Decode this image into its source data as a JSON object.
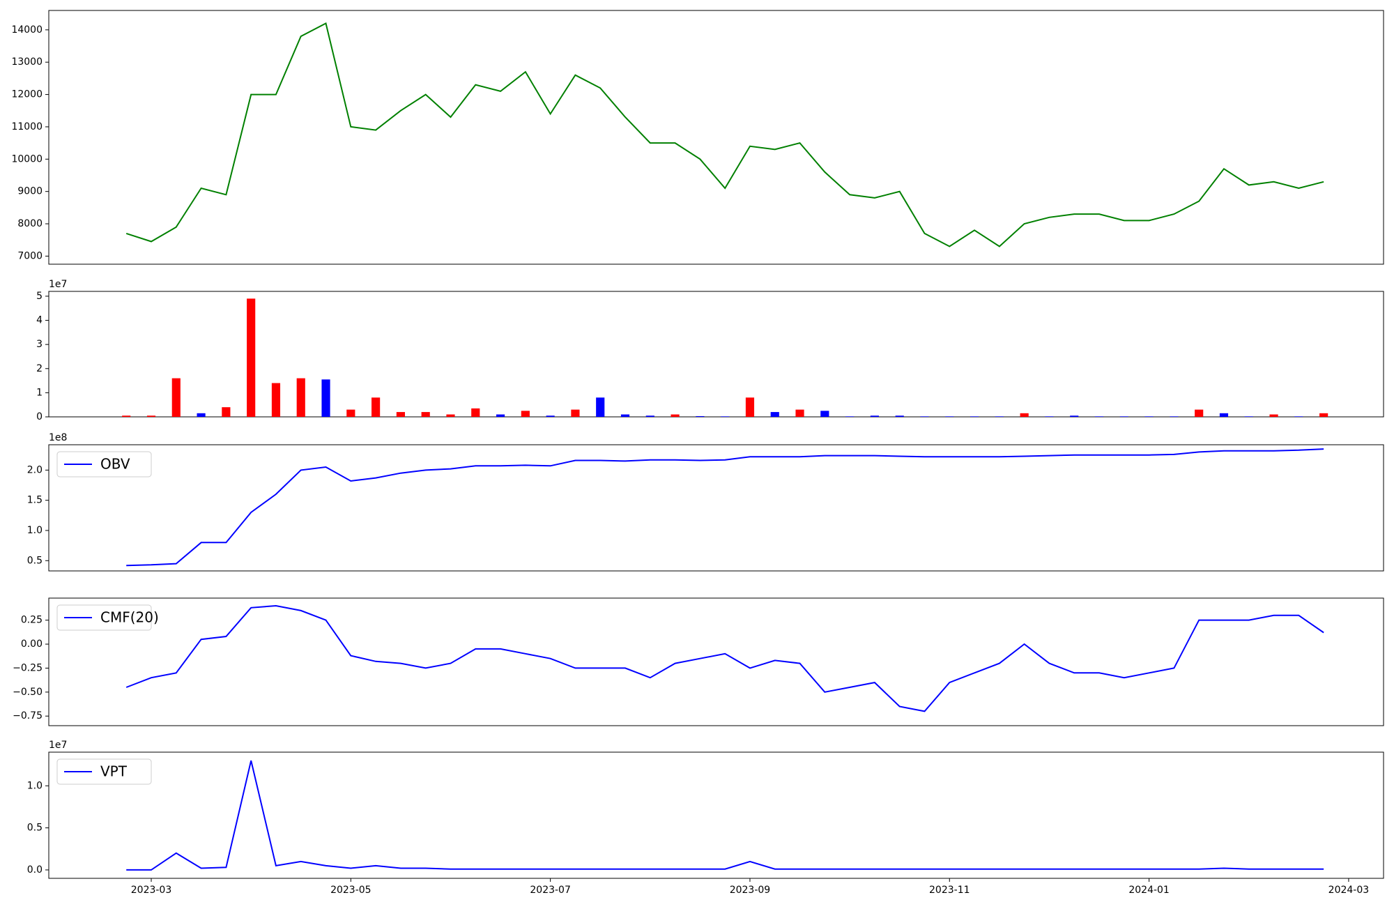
{
  "chart_data": [
    {
      "type": "line",
      "ylim": [
        6750,
        14600
      ],
      "yticks": [
        7000,
        8000,
        9000,
        10000,
        11000,
        12000,
        13000,
        14000
      ],
      "series": [
        {
          "color": "green",
          "values": [
            7700,
            7450,
            7900,
            9100,
            8900,
            12000,
            12000,
            13800,
            14200,
            11000,
            10900,
            11500,
            12000,
            11300,
            12300,
            12100,
            12700,
            11400,
            12600,
            12200,
            11300,
            10500,
            10500,
            10000,
            9100,
            10400,
            10300,
            10500,
            9600,
            8900,
            8800,
            9000,
            7700,
            7300,
            7800,
            7300,
            8000,
            8200,
            8300,
            8300,
            8100,
            8100,
            8300,
            8700,
            9700,
            9200,
            9300,
            9100,
            9300,
            null
          ]
        }
      ]
    },
    {
      "type": "bar",
      "offset_label": "1e7",
      "ylim": [
        0,
        52000000
      ],
      "yticks": [
        {
          "value": 0,
          "label": "0"
        },
        {
          "value": 10000000,
          "label": "1"
        },
        {
          "value": 20000000,
          "label": "2"
        },
        {
          "value": 30000000,
          "label": "3"
        },
        {
          "value": 40000000,
          "label": "4"
        },
        {
          "value": 50000000,
          "label": "5"
        }
      ],
      "values": [
        500000,
        500000,
        16000000,
        1500000,
        4000000,
        49000000,
        14000000,
        16000000,
        15500000,
        3000000,
        8000000,
        2000000,
        2000000,
        1000000,
        3500000,
        1000000,
        2500000,
        500000,
        3000000,
        8000000,
        1000000,
        500000,
        1000000,
        300000,
        200000,
        8000000,
        2000000,
        3000000,
        2500000,
        200000,
        500000,
        500000,
        200000,
        200000,
        200000,
        200000,
        1500000,
        200000,
        500000,
        200000,
        200000,
        200000,
        200000,
        3000000,
        1500000,
        200000,
        1000000,
        200000,
        1500000,
        null
      ],
      "colors": [
        "red",
        "red",
        "red",
        "blue",
        "red",
        "red",
        "red",
        "red",
        "blue",
        "red",
        "red",
        "red",
        "red",
        "red",
        "red",
        "blue",
        "red",
        "blue",
        "red",
        "blue",
        "blue",
        "blue",
        "red",
        "blue",
        "blue",
        "red",
        "blue",
        "red",
        "blue",
        "blue",
        "blue",
        "blue",
        "blue",
        "blue",
        "blue",
        "blue",
        "red",
        "blue",
        "blue",
        "blue",
        "blue",
        "blue",
        "blue",
        "red",
        "blue",
        "blue",
        "red",
        "blue",
        "red",
        "red"
      ]
    },
    {
      "type": "line",
      "offset_label": "1e8",
      "legend": "upper left",
      "ylim": [
        33000000,
        242000000
      ],
      "yticks": [
        {
          "value": 50000000,
          "label": "0.5"
        },
        {
          "value": 100000000,
          "label": "1.0"
        },
        {
          "value": 150000000,
          "label": "1.5"
        },
        {
          "value": 200000000,
          "label": "2.0"
        }
      ],
      "series": [
        {
          "name": "OBV",
          "color": "blue",
          "values": [
            42000000,
            43000000,
            45000000,
            80000000,
            80000000,
            130000000,
            160000000,
            200000000,
            205000000,
            182000000,
            187000000,
            195000000,
            200000000,
            202000000,
            207000000,
            207000000,
            208000000,
            207000000,
            216000000,
            216000000,
            215000000,
            217000000,
            217000000,
            216000000,
            217000000,
            222000000,
            222000000,
            222000000,
            224000000,
            224000000,
            224000000,
            223000000,
            222000000,
            222000000,
            222000000,
            222000000,
            223000000,
            224000000,
            225000000,
            225000000,
            225000000,
            225000000,
            226000000,
            230000000,
            232000000,
            232000000,
            232000000,
            233000000,
            235000000,
            null
          ]
        }
      ]
    },
    {
      "type": "line",
      "legend": "upper left",
      "ylim": [
        -0.85,
        0.48
      ],
      "yticks": [
        {
          "value": -0.75,
          "label": "−0.75"
        },
        {
          "value": -0.5,
          "label": "−0.50"
        },
        {
          "value": -0.25,
          "label": "−0.25"
        },
        {
          "value": 0,
          "label": "0.00"
        },
        {
          "value": 0.25,
          "label": "0.25"
        }
      ],
      "series": [
        {
          "name": "CMF(20)",
          "color": "blue",
          "values": [
            -0.45,
            -0.35,
            -0.3,
            0.05,
            0.08,
            0.38,
            0.4,
            0.35,
            0.25,
            -0.12,
            -0.18,
            -0.2,
            -0.25,
            -0.2,
            -0.05,
            -0.05,
            -0.1,
            -0.15,
            -0.25,
            -0.25,
            -0.25,
            -0.35,
            -0.2,
            -0.15,
            -0.1,
            -0.25,
            -0.17,
            -0.2,
            -0.5,
            -0.45,
            -0.4,
            -0.65,
            -0.7,
            -0.4,
            -0.3,
            -0.2,
            0.0,
            -0.2,
            -0.3,
            -0.3,
            -0.35,
            -0.3,
            -0.25,
            0.25,
            0.25,
            0.25,
            0.3,
            0.3,
            0.12,
            null
          ]
        }
      ]
    },
    {
      "type": "line",
      "offset_label": "1e7",
      "legend": "upper left",
      "ylim": [
        -1000000,
        14000000
      ],
      "yticks": [
        {
          "value": 0,
          "label": "0.0"
        },
        {
          "value": 5000000,
          "label": "0.5"
        },
        {
          "value": 10000000,
          "label": "1.0"
        }
      ],
      "categories": [
        null,
        "2023-03",
        null,
        null,
        null,
        null,
        null,
        null,
        null,
        "2023-05",
        null,
        null,
        null,
        null,
        null,
        null,
        null,
        "2023-07",
        null,
        null,
        null,
        null,
        null,
        null,
        null,
        "2023-09",
        null,
        null,
        null,
        null,
        null,
        null,
        null,
        "2023-11",
        null,
        null,
        null,
        null,
        null,
        null,
        null,
        "2024-01",
        null,
        null,
        null,
        null,
        null,
        null,
        null,
        "2024-03"
      ],
      "series": [
        {
          "name": "VPT",
          "color": "blue",
          "values": [
            0,
            0,
            2000000,
            200000,
            300000,
            13000000,
            500000,
            1000000,
            500000,
            200000,
            500000,
            200000,
            200000,
            100000,
            100000,
            100000,
            100000,
            100000,
            100000,
            100000,
            100000,
            100000,
            100000,
            100000,
            100000,
            1000000,
            100000,
            100000,
            100000,
            100000,
            100000,
            100000,
            100000,
            100000,
            100000,
            100000,
            100000,
            100000,
            100000,
            100000,
            100000,
            100000,
            100000,
            100000,
            200000,
            100000,
            100000,
            100000,
            100000,
            null
          ]
        }
      ]
    }
  ]
}
